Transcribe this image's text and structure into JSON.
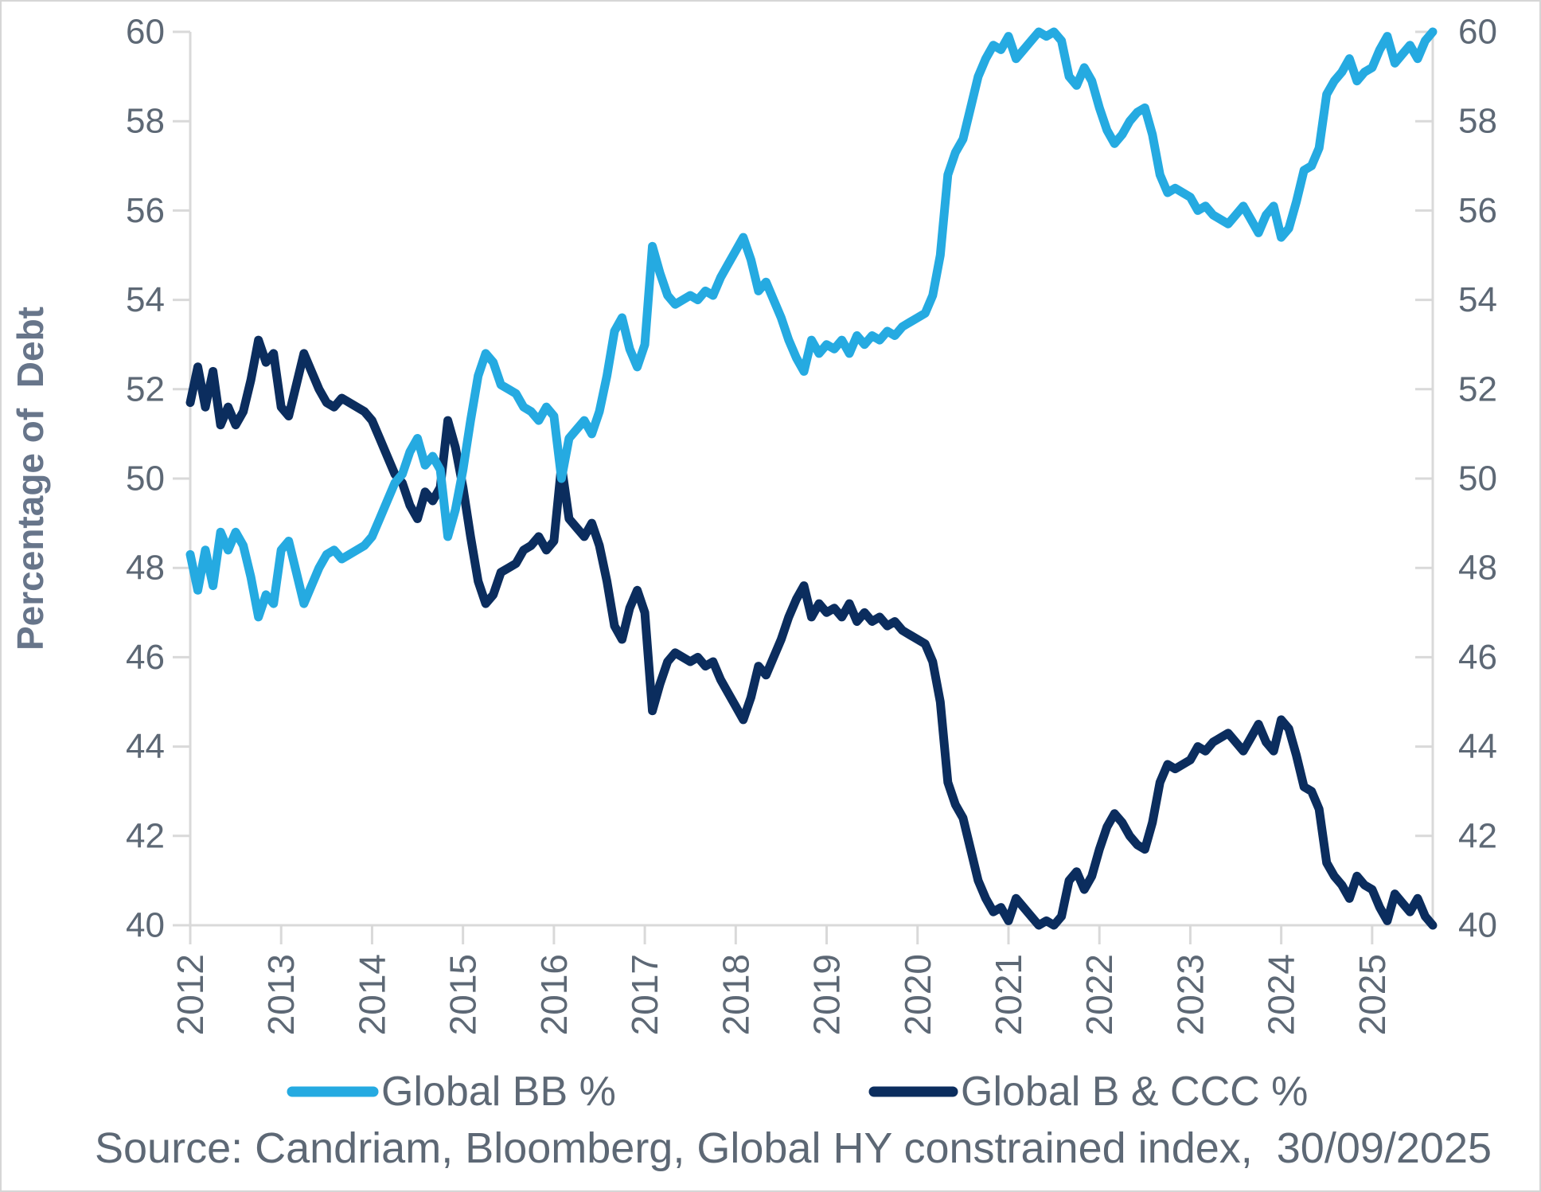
{
  "chart": {
    "y_axis": {
      "title": "Percentage of  Debt",
      "ticks": [
        40,
        42,
        44,
        46,
        48,
        50,
        52,
        54,
        56,
        58,
        60
      ]
    },
    "x_axis": {
      "years": [
        "2012",
        "2013",
        "2014",
        "2015",
        "2016",
        "2017",
        "2018",
        "2019",
        "2020",
        "2021",
        "2022",
        "2023",
        "2024",
        "2025"
      ]
    },
    "legend": [
      {
        "label": "Global BB %",
        "color": "#25aae1"
      },
      {
        "label": "Global B & CCC %",
        "color": "#0b2d5e"
      }
    ],
    "source_text": "Source: Candriam, Bloomberg, Global HY constrained index,  30/09/2025",
    "colors": {
      "axis_line": "#d9d9d9",
      "tick_label": "#5d6875"
    }
  },
  "chart_data": {
    "type": "line",
    "title": "",
    "xlabel": "",
    "ylabel": "Percentage of Debt",
    "x_start": "2012-01",
    "x_end": "2025-09",
    "frequency": "monthly",
    "ylim": [
      40,
      60
    ],
    "y_tick_step": 2,
    "grid": false,
    "legend_position": "bottom",
    "dual_y_axis": true,
    "series": [
      {
        "name": "Global BB %",
        "color": "#25aae1",
        "values": [
          48.3,
          47.5,
          48.4,
          47.6,
          48.8,
          48.4,
          48.8,
          48.5,
          47.8,
          46.9,
          47.4,
          47.2,
          48.4,
          48.6,
          47.9,
          47.2,
          47.6,
          48.0,
          48.3,
          48.4,
          48.2,
          48.3,
          48.4,
          48.5,
          48.7,
          49.1,
          49.5,
          49.9,
          50.1,
          50.6,
          50.9,
          50.3,
          50.5,
          50.2,
          48.7,
          49.3,
          50.2,
          51.3,
          52.3,
          52.8,
          52.6,
          52.1,
          52.0,
          51.9,
          51.6,
          51.5,
          51.3,
          51.6,
          51.4,
          50.0,
          50.9,
          51.1,
          51.3,
          51.0,
          51.5,
          52.3,
          53.3,
          53.6,
          52.9,
          52.5,
          53.0,
          55.2,
          54.6,
          54.1,
          53.9,
          54.0,
          54.1,
          54.0,
          54.2,
          54.1,
          54.5,
          54.8,
          55.1,
          55.4,
          54.9,
          54.2,
          54.4,
          54.0,
          53.6,
          53.1,
          52.7,
          52.4,
          53.1,
          52.8,
          53.0,
          52.9,
          53.1,
          52.8,
          53.2,
          53.0,
          53.2,
          53.1,
          53.3,
          53.2,
          53.4,
          53.5,
          53.6,
          53.7,
          54.1,
          55.0,
          56.8,
          57.3,
          57.6,
          58.3,
          59.0,
          59.4,
          59.7,
          59.6,
          59.9,
          59.4,
          59.6,
          59.8,
          60.0,
          59.9,
          60.0,
          59.8,
          59.0,
          58.8,
          59.2,
          58.9,
          58.3,
          57.8,
          57.5,
          57.7,
          58.0,
          58.2,
          58.3,
          57.7,
          56.8,
          56.4,
          56.5,
          56.4,
          56.3,
          56.0,
          56.1,
          55.9,
          55.8,
          55.7,
          55.9,
          56.1,
          55.8,
          55.5,
          55.9,
          56.1,
          55.4,
          55.6,
          56.2,
          56.9,
          57.0,
          57.4,
          58.6,
          58.9,
          59.1,
          59.4,
          58.9,
          59.1,
          59.2,
          59.6,
          59.9,
          59.3,
          59.5,
          59.7,
          59.4,
          59.8,
          60.0
        ]
      },
      {
        "name": "Global B & CCC %",
        "color": "#0b2d5e",
        "values": [
          51.7,
          52.5,
          51.6,
          52.4,
          51.2,
          51.6,
          51.2,
          51.5,
          52.2,
          53.1,
          52.6,
          52.8,
          51.6,
          51.4,
          52.1,
          52.8,
          52.4,
          52.0,
          51.7,
          51.6,
          51.8,
          51.7,
          51.6,
          51.5,
          51.3,
          50.9,
          50.5,
          50.1,
          49.9,
          49.4,
          49.1,
          49.7,
          49.5,
          49.8,
          51.3,
          50.7,
          49.8,
          48.7,
          47.7,
          47.2,
          47.4,
          47.9,
          48.0,
          48.1,
          48.4,
          48.5,
          48.7,
          48.4,
          48.6,
          50.3,
          49.1,
          48.9,
          48.7,
          49.0,
          48.5,
          47.7,
          46.7,
          46.4,
          47.1,
          47.5,
          47.0,
          44.8,
          45.4,
          45.9,
          46.1,
          46.0,
          45.9,
          46.0,
          45.8,
          45.9,
          45.5,
          45.2,
          44.9,
          44.6,
          45.1,
          45.8,
          45.6,
          46.0,
          46.4,
          46.9,
          47.3,
          47.6,
          46.9,
          47.2,
          47.0,
          47.1,
          46.9,
          47.2,
          46.8,
          47.0,
          46.8,
          46.9,
          46.7,
          46.8,
          46.6,
          46.5,
          46.4,
          46.3,
          45.9,
          45.0,
          43.2,
          42.7,
          42.4,
          41.7,
          41.0,
          40.6,
          40.3,
          40.4,
          40.1,
          40.6,
          40.4,
          40.2,
          40.0,
          40.1,
          40.0,
          40.2,
          41.0,
          41.2,
          40.8,
          41.1,
          41.7,
          42.2,
          42.5,
          42.3,
          42.0,
          41.8,
          41.7,
          42.3,
          43.2,
          43.6,
          43.5,
          43.6,
          43.7,
          44.0,
          43.9,
          44.1,
          44.2,
          44.3,
          44.1,
          43.9,
          44.2,
          44.5,
          44.1,
          43.9,
          44.6,
          44.4,
          43.8,
          43.1,
          43.0,
          42.6,
          41.4,
          41.1,
          40.9,
          40.6,
          41.1,
          40.9,
          40.8,
          40.4,
          40.1,
          40.7,
          40.5,
          40.3,
          40.6,
          40.2,
          40.0
        ]
      }
    ]
  }
}
